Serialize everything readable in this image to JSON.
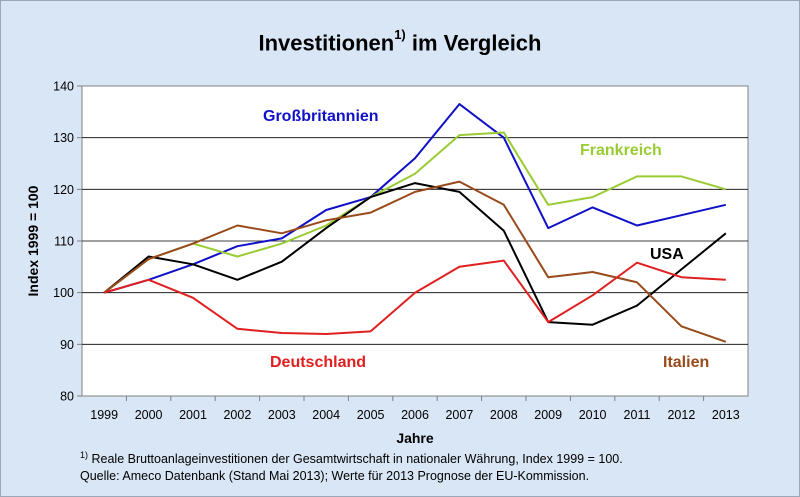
{
  "chart_data": {
    "type": "line",
    "title_main": "Investitionen",
    "title_sup": "1)",
    "title_rest": " im Vergleich",
    "xlabel": "Jahre",
    "ylabel": "Index 1999 = 100",
    "ylim": [
      80,
      140
    ],
    "yticks": [
      80,
      90,
      100,
      110,
      120,
      130,
      140
    ],
    "grid": true,
    "categories": [
      "1999",
      "2000",
      "2001",
      "2002",
      "2003",
      "2004",
      "2005",
      "2006",
      "2007",
      "2008",
      "2009",
      "2010",
      "2011",
      "2012",
      "2013"
    ],
    "series": [
      {
        "name": "Großbritannien",
        "color": "#1010c8",
        "values": [
          100,
          102.5,
          105.5,
          109,
          110.5,
          116,
          118.5,
          126,
          136.5,
          130,
          112.5,
          116.5,
          113,
          115,
          117
        ]
      },
      {
        "name": "Frankreich",
        "color": "#99cc33",
        "values": [
          100,
          106.5,
          109.5,
          107,
          109.5,
          113,
          118.5,
          123,
          130.5,
          131,
          117,
          118.5,
          122.5,
          122.5,
          120
        ]
      },
      {
        "name": "USA",
        "color": "#000000",
        "values": [
          100,
          107,
          105.5,
          102.5,
          106,
          112.5,
          118.5,
          121.2,
          119.5,
          112,
          94.3,
          93.8,
          97.5,
          104.5,
          111.5
        ]
      },
      {
        "name": "Italien",
        "color": "#994a1a",
        "values": [
          100,
          106.5,
          109.5,
          113,
          111.5,
          114,
          115.5,
          119.5,
          121.5,
          117,
          103,
          104,
          102,
          93.5,
          90.5
        ]
      },
      {
        "name": "Deutschland",
        "color": "#e02020",
        "values": [
          100,
          102.5,
          99,
          93,
          92.2,
          92,
          92.5,
          100,
          105,
          106.2,
          94.3,
          99.5,
          105.8,
          103,
          102.5
        ]
      }
    ]
  },
  "footnote": {
    "marker": "1)",
    "line1": " Reale Bruttoanlageinvestitionen der Gesamtwirtschaft in nationaler Währung, Index 1999 = 100.",
    "line2": "Quelle: Ameco Datenbank (Stand Mai 2013); Werte für 2013 Prognose der EU-Kommission."
  }
}
